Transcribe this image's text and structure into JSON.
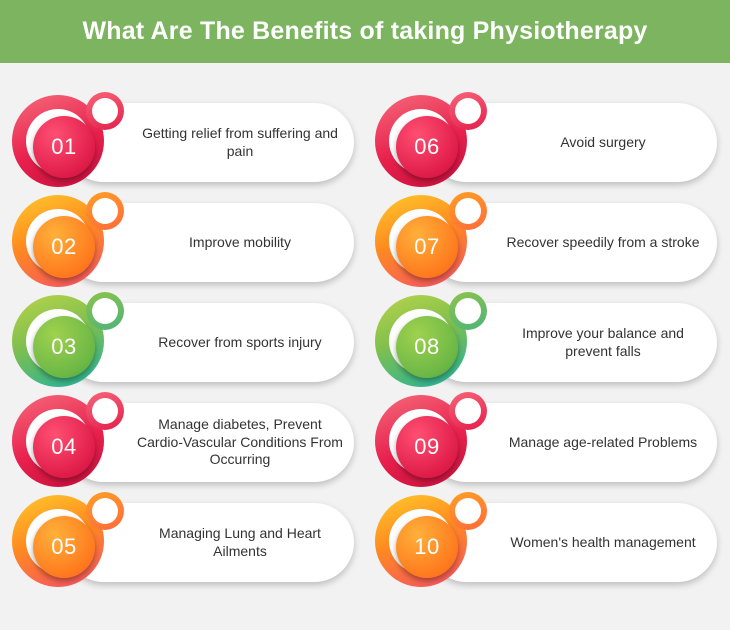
{
  "title": "What Are The Benefits of taking Physiotherapy",
  "colors": {
    "header": "#7cb45f",
    "pink": "#e41f4c",
    "orange": "#ff8a1f",
    "green": "#7fbf4e"
  },
  "benefits": [
    {
      "number": "01",
      "text": "Getting relief from suffering and pain",
      "color": "pink"
    },
    {
      "number": "02",
      "text": "Improve mobility",
      "color": "orange"
    },
    {
      "number": "03",
      "text": "Recover from sports injury",
      "color": "green"
    },
    {
      "number": "04",
      "text": "Manage diabetes, Prevent Cardio-Vascular Conditions From Occurring",
      "color": "pink"
    },
    {
      "number": "05",
      "text": "Managing Lung and Heart Ailments",
      "color": "orange"
    },
    {
      "number": "06",
      "text": "Avoid surgery",
      "color": "pink"
    },
    {
      "number": "07",
      "text": "Recover speedily from a stroke",
      "color": "orange"
    },
    {
      "number": "08",
      "text": "Improve your balance and prevent falls",
      "color": "green"
    },
    {
      "number": "09",
      "text": "Manage age-related Problems",
      "color": "pink"
    },
    {
      "number": "10",
      "text": "Women's health management",
      "color": "orange"
    }
  ]
}
